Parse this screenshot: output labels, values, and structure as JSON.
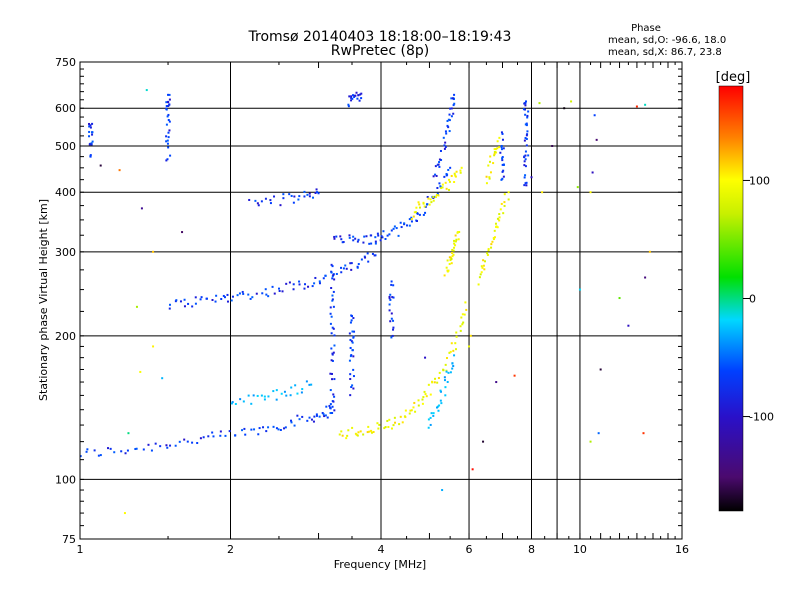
{
  "chart_data": {
    "type": "scatter",
    "title": "Tromsø 20140403 18:18:00–18:19:43",
    "subtitle": "RwPretec (8p)",
    "xlabel": "Frequency [MHz]",
    "ylabel": "Stationary phase Virtual Height [km]",
    "x_scale": "log",
    "y_scale": "log",
    "xlim": [
      1,
      16
    ],
    "ylim": [
      75,
      750
    ],
    "x_ticks": [
      1,
      2,
      4,
      6,
      8,
      10,
      16
    ],
    "y_ticks": [
      75,
      100,
      200,
      300,
      400,
      500,
      600,
      750
    ],
    "x_gridlines": [
      2,
      4,
      6,
      8,
      9,
      10
    ],
    "y_gridlines": [
      100,
      200,
      300,
      400,
      500,
      600
    ],
    "grid": true,
    "phase_stats": {
      "heading": "Phase",
      "line_O": "mean, sd,O: -96.6, 18.0",
      "line_X": "mean, sd,X:  86.7, 23.8"
    },
    "colorbar": {
      "label": "[deg]",
      "range": [
        -180,
        180
      ],
      "ticks": [
        100,
        0,
        -100
      ],
      "colormap": "rainbow (black-purple-blue-cyan-green-yellow-red)"
    },
    "series": [
      {
        "traces": [
          [
            [
              1.0,
              113
            ],
            [
              1.2,
              115
            ],
            [
              1.45,
              118
            ],
            [
              1.7,
              121
            ],
            [
              2.0,
              124
            ],
            [
              2.3,
              127
            ],
            [
              2.6,
              131
            ],
            [
              2.9,
              135
            ],
            [
              3.1,
              138
            ],
            [
              3.2,
              142
            ]
          ],
          [
            [
              1.5,
              232
            ],
            [
              1.7,
              236
            ],
            [
              1.9,
              240
            ],
            [
              2.1,
              243
            ],
            [
              2.4,
              248
            ],
            [
              2.7,
              255
            ],
            [
              3.0,
              262
            ],
            [
              3.3,
              272
            ],
            [
              3.6,
              283
            ],
            [
              3.9,
              295
            ]
          ],
          [
            [
              3.2,
              325
            ],
            [
              3.5,
              318
            ],
            [
              3.8,
              318
            ],
            [
              4.0,
              322
            ],
            [
              4.3,
              332
            ],
            [
              4.6,
              348
            ],
            [
              4.9,
              372
            ],
            [
              5.2,
              405
            ],
            [
              5.5,
              450
            ]
          ],
          [
            [
              3.45,
              620
            ],
            [
              3.55,
              640
            ],
            [
              3.65,
              630
            ]
          ],
          [
            [
              5.1,
              430
            ],
            [
              5.3,
              480
            ],
            [
              5.45,
              540
            ],
            [
              5.55,
              600
            ],
            [
              5.6,
              640
            ]
          ],
          [
            [
              2.2,
              380
            ],
            [
              2.5,
              385
            ],
            [
              2.8,
              392
            ],
            [
              3.0,
              398
            ]
          ],
          [
            [
              1.5,
              470
            ],
            [
              1.5,
              540
            ],
            [
              1.5,
              600
            ],
            [
              1.5,
              640
            ]
          ],
          [
            [
              3.2,
              140
            ],
            [
              3.2,
              170
            ],
            [
              3.2,
              200
            ],
            [
              3.2,
              240
            ],
            [
              3.2,
              280
            ]
          ],
          [
            [
              3.5,
              150
            ],
            [
              3.5,
              180
            ],
            [
              3.5,
              200
            ],
            [
              3.5,
              220
            ]
          ],
          [
            [
              4.2,
              200
            ],
            [
              4.2,
              230
            ],
            [
              4.2,
              260
            ]
          ],
          [
            [
              1.05,
              560
            ],
            [
              1.05,
              530
            ],
            [
              1.05,
              475
            ]
          ],
          [
            [
              7.8,
              410
            ],
            [
              7.8,
              460
            ],
            [
              7.8,
              520
            ],
            [
              7.8,
              580
            ],
            [
              7.8,
              620
            ]
          ],
          [
            [
              7.0,
              420
            ],
            [
              7.0,
              470
            ],
            [
              7.0,
              530
            ]
          ]
        ],
        "phase": -100
      },
      {
        "traces": [
          [
            [
              3.3,
              124
            ],
            [
              3.6,
              126
            ],
            [
              3.9,
              128
            ],
            [
              4.2,
              131
            ],
            [
              4.5,
              137
            ],
            [
              4.8,
              145
            ],
            [
              5.1,
              158
            ],
            [
              5.4,
              175
            ],
            [
              5.7,
              200
            ],
            [
              5.9,
              235
            ]
          ],
          [
            [
              4.6,
              360
            ],
            [
              4.9,
              378
            ],
            [
              5.2,
              395
            ],
            [
              5.5,
              420
            ],
            [
              5.8,
              450
            ]
          ],
          [
            [
              5.4,
              270
            ],
            [
              5.5,
              290
            ],
            [
              5.6,
              310
            ],
            [
              5.7,
              330
            ]
          ],
          [
            [
              6.3,
              260
            ],
            [
              6.5,
              290
            ],
            [
              6.7,
              320
            ],
            [
              6.9,
              360
            ],
            [
              7.2,
              400
            ]
          ],
          [
            [
              6.5,
              420
            ],
            [
              6.7,
              470
            ],
            [
              6.9,
              520
            ]
          ]
        ],
        "phase": 95
      },
      {
        "traces": [
          [
            [
              2.0,
              145
            ],
            [
              2.3,
              148
            ],
            [
              2.6,
              152
            ],
            [
              2.9,
              158
            ]
          ],
          [
            [
              5.0,
              130
            ],
            [
              5.2,
              142
            ],
            [
              5.4,
              160
            ],
            [
              5.6,
              182
            ]
          ]
        ],
        "phase": -40
      },
      {
        "traces": [
          [
            [
              1.1,
              455
            ],
            [
              1.2,
              445
            ],
            [
              1.33,
              370
            ],
            [
              1.36,
              655
            ],
            [
              1.4,
              300
            ],
            [
              1.6,
              330
            ],
            [
              1.25,
              125
            ],
            [
              1.3,
              230
            ],
            [
              1.46,
              163
            ],
            [
              1.23,
              85
            ],
            [
              1.32,
              168
            ],
            [
              1.4,
              190
            ]
          ],
          [
            [
              6.0,
              190
            ],
            [
              6.05,
              200
            ],
            [
              6.4,
              120
            ],
            [
              6.1,
              105
            ],
            [
              6.8,
              160
            ],
            [
              8.0,
              430
            ],
            [
              8.4,
              400
            ],
            [
              8.8,
              500
            ],
            [
              9.3,
              600
            ],
            [
              9.6,
              620
            ],
            [
              10.6,
              440
            ],
            [
              10.7,
              580
            ],
            [
              10.8,
              515
            ],
            [
              10.9,
              125
            ],
            [
              10.5,
              120
            ],
            [
              10.5,
              400
            ],
            [
              11.0,
              170
            ],
            [
              12.0,
              240
            ],
            [
              12.5,
              210
            ],
            [
              13.0,
              605
            ],
            [
              13.5,
              610
            ],
            [
              13.8,
              300
            ],
            [
              13.5,
              265
            ],
            [
              13.4,
              125
            ],
            [
              7.4,
              165
            ],
            [
              8.3,
              615
            ],
            [
              9.9,
              410
            ],
            [
              10.0,
              250
            ],
            [
              5.3,
              95
            ],
            [
              4.9,
              180
            ]
          ]
        ],
        "phase": "mixed"
      }
    ]
  }
}
